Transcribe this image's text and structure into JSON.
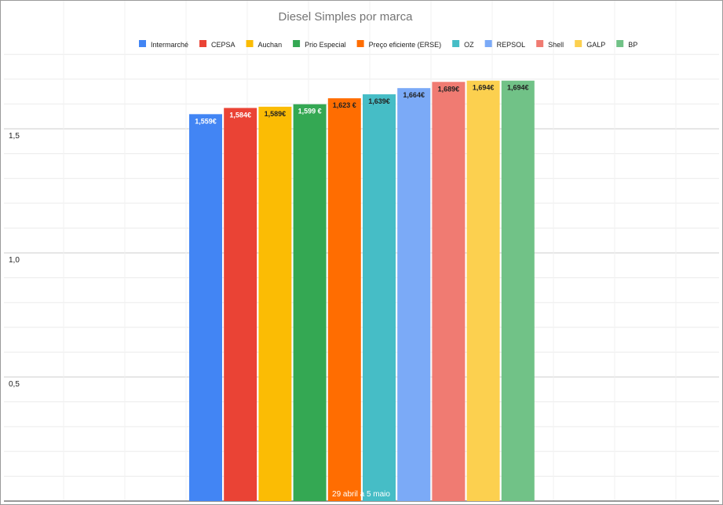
{
  "chart_data": {
    "type": "bar",
    "title": "Diesel Simples por marca",
    "categories": [
      "29 abril a 5 maio"
    ],
    "series": [
      {
        "name": "Intermarché",
        "values": [
          1.559
        ],
        "label": "1,559€",
        "color": "#4285f4",
        "label_color": "#ffffff"
      },
      {
        "name": "CEPSA",
        "values": [
          1.584
        ],
        "label": "1,584€",
        "color": "#ea4335",
        "label_color": "#ffffff"
      },
      {
        "name": "Auchan",
        "values": [
          1.589
        ],
        "label": "1,589€",
        "color": "#fbbc04",
        "label_color": "#222222"
      },
      {
        "name": "Prio Especial",
        "values": [
          1.599
        ],
        "label": "1,599 €",
        "color": "#34a853",
        "label_color": "#ffffff"
      },
      {
        "name": "Preço eficiente (ERSE)",
        "values": [
          1.623
        ],
        "label": "1,623 €",
        "color": "#ff6d01",
        "label_color": "#222222"
      },
      {
        "name": "OZ",
        "values": [
          1.639
        ],
        "label": "1,639€",
        "color": "#46bdc6",
        "label_color": "#222222"
      },
      {
        "name": "REPSOL",
        "values": [
          1.664
        ],
        "label": "1,664€",
        "color": "#7baaf7",
        "label_color": "#222222"
      },
      {
        "name": "Shell",
        "values": [
          1.689
        ],
        "label": "1,689€",
        "color": "#f07b72",
        "label_color": "#222222"
      },
      {
        "name": "GALP",
        "values": [
          1.694
        ],
        "label": "1,694€",
        "color": "#fcd04f",
        "label_color": "#222222"
      },
      {
        "name": "BP",
        "values": [
          1.694
        ],
        "label": "1,694€",
        "color": "#71c287",
        "label_color": "#222222"
      }
    ],
    "y_ticks": [
      {
        "value": 0.5,
        "label": "0,5"
      },
      {
        "value": 1.0,
        "label": "1,0"
      },
      {
        "value": 1.5,
        "label": "1,5"
      }
    ],
    "ylim": [
      0,
      1.85
    ],
    "grid": true,
    "legend_position": "top",
    "xlabel": "",
    "ylabel": ""
  }
}
